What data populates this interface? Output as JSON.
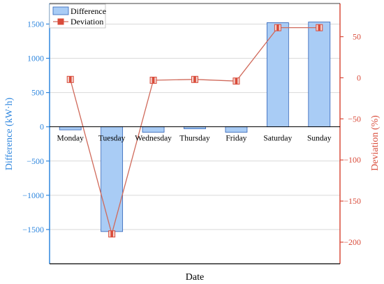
{
  "colors": {
    "bar_fill": "#a9ccf5",
    "bar_stroke": "#2f62b8",
    "line": "#d06a5b",
    "marker_fill": "#d94b3a",
    "left_axis": "#2e86de",
    "right_axis": "#d94b3a",
    "grid": "#d9d9d9"
  },
  "chart_data": {
    "type": "bar+line",
    "xlabel": "Date",
    "categories": [
      "Monday",
      "Tuesday",
      "Wednesday",
      "Thursday",
      "Friday",
      "Saturday",
      "Sunday"
    ],
    "series": [
      {
        "name": "Difference",
        "type": "bar",
        "axis": "left",
        "values": [
          -45,
          -1530,
          -80,
          -30,
          -80,
          1520,
          1530
        ]
      },
      {
        "name": "Deviation",
        "type": "line",
        "axis": "right",
        "values": [
          -2,
          -190,
          -3,
          -2,
          -4,
          61,
          61
        ]
      }
    ],
    "left_axis": {
      "label": "Difference (kW·h)",
      "ylim": [
        -2000,
        1800
      ],
      "ticks": [
        1500,
        1000,
        500,
        0,
        -500,
        -1000,
        -1500
      ],
      "tick_labels": [
        "1500",
        "1000",
        "500",
        "0",
        "−500",
        "−1000",
        "−1500"
      ]
    },
    "right_axis": {
      "label": "Deviation (%)",
      "ylim": [
        -226.3,
        90.4
      ],
      "ticks": [
        50,
        0,
        -50,
        -100,
        -150,
        -200
      ],
      "tick_labels": [
        "50",
        "0",
        "−50",
        "−100",
        "−150",
        "−200"
      ]
    },
    "grid": true,
    "legend": "top-left"
  }
}
